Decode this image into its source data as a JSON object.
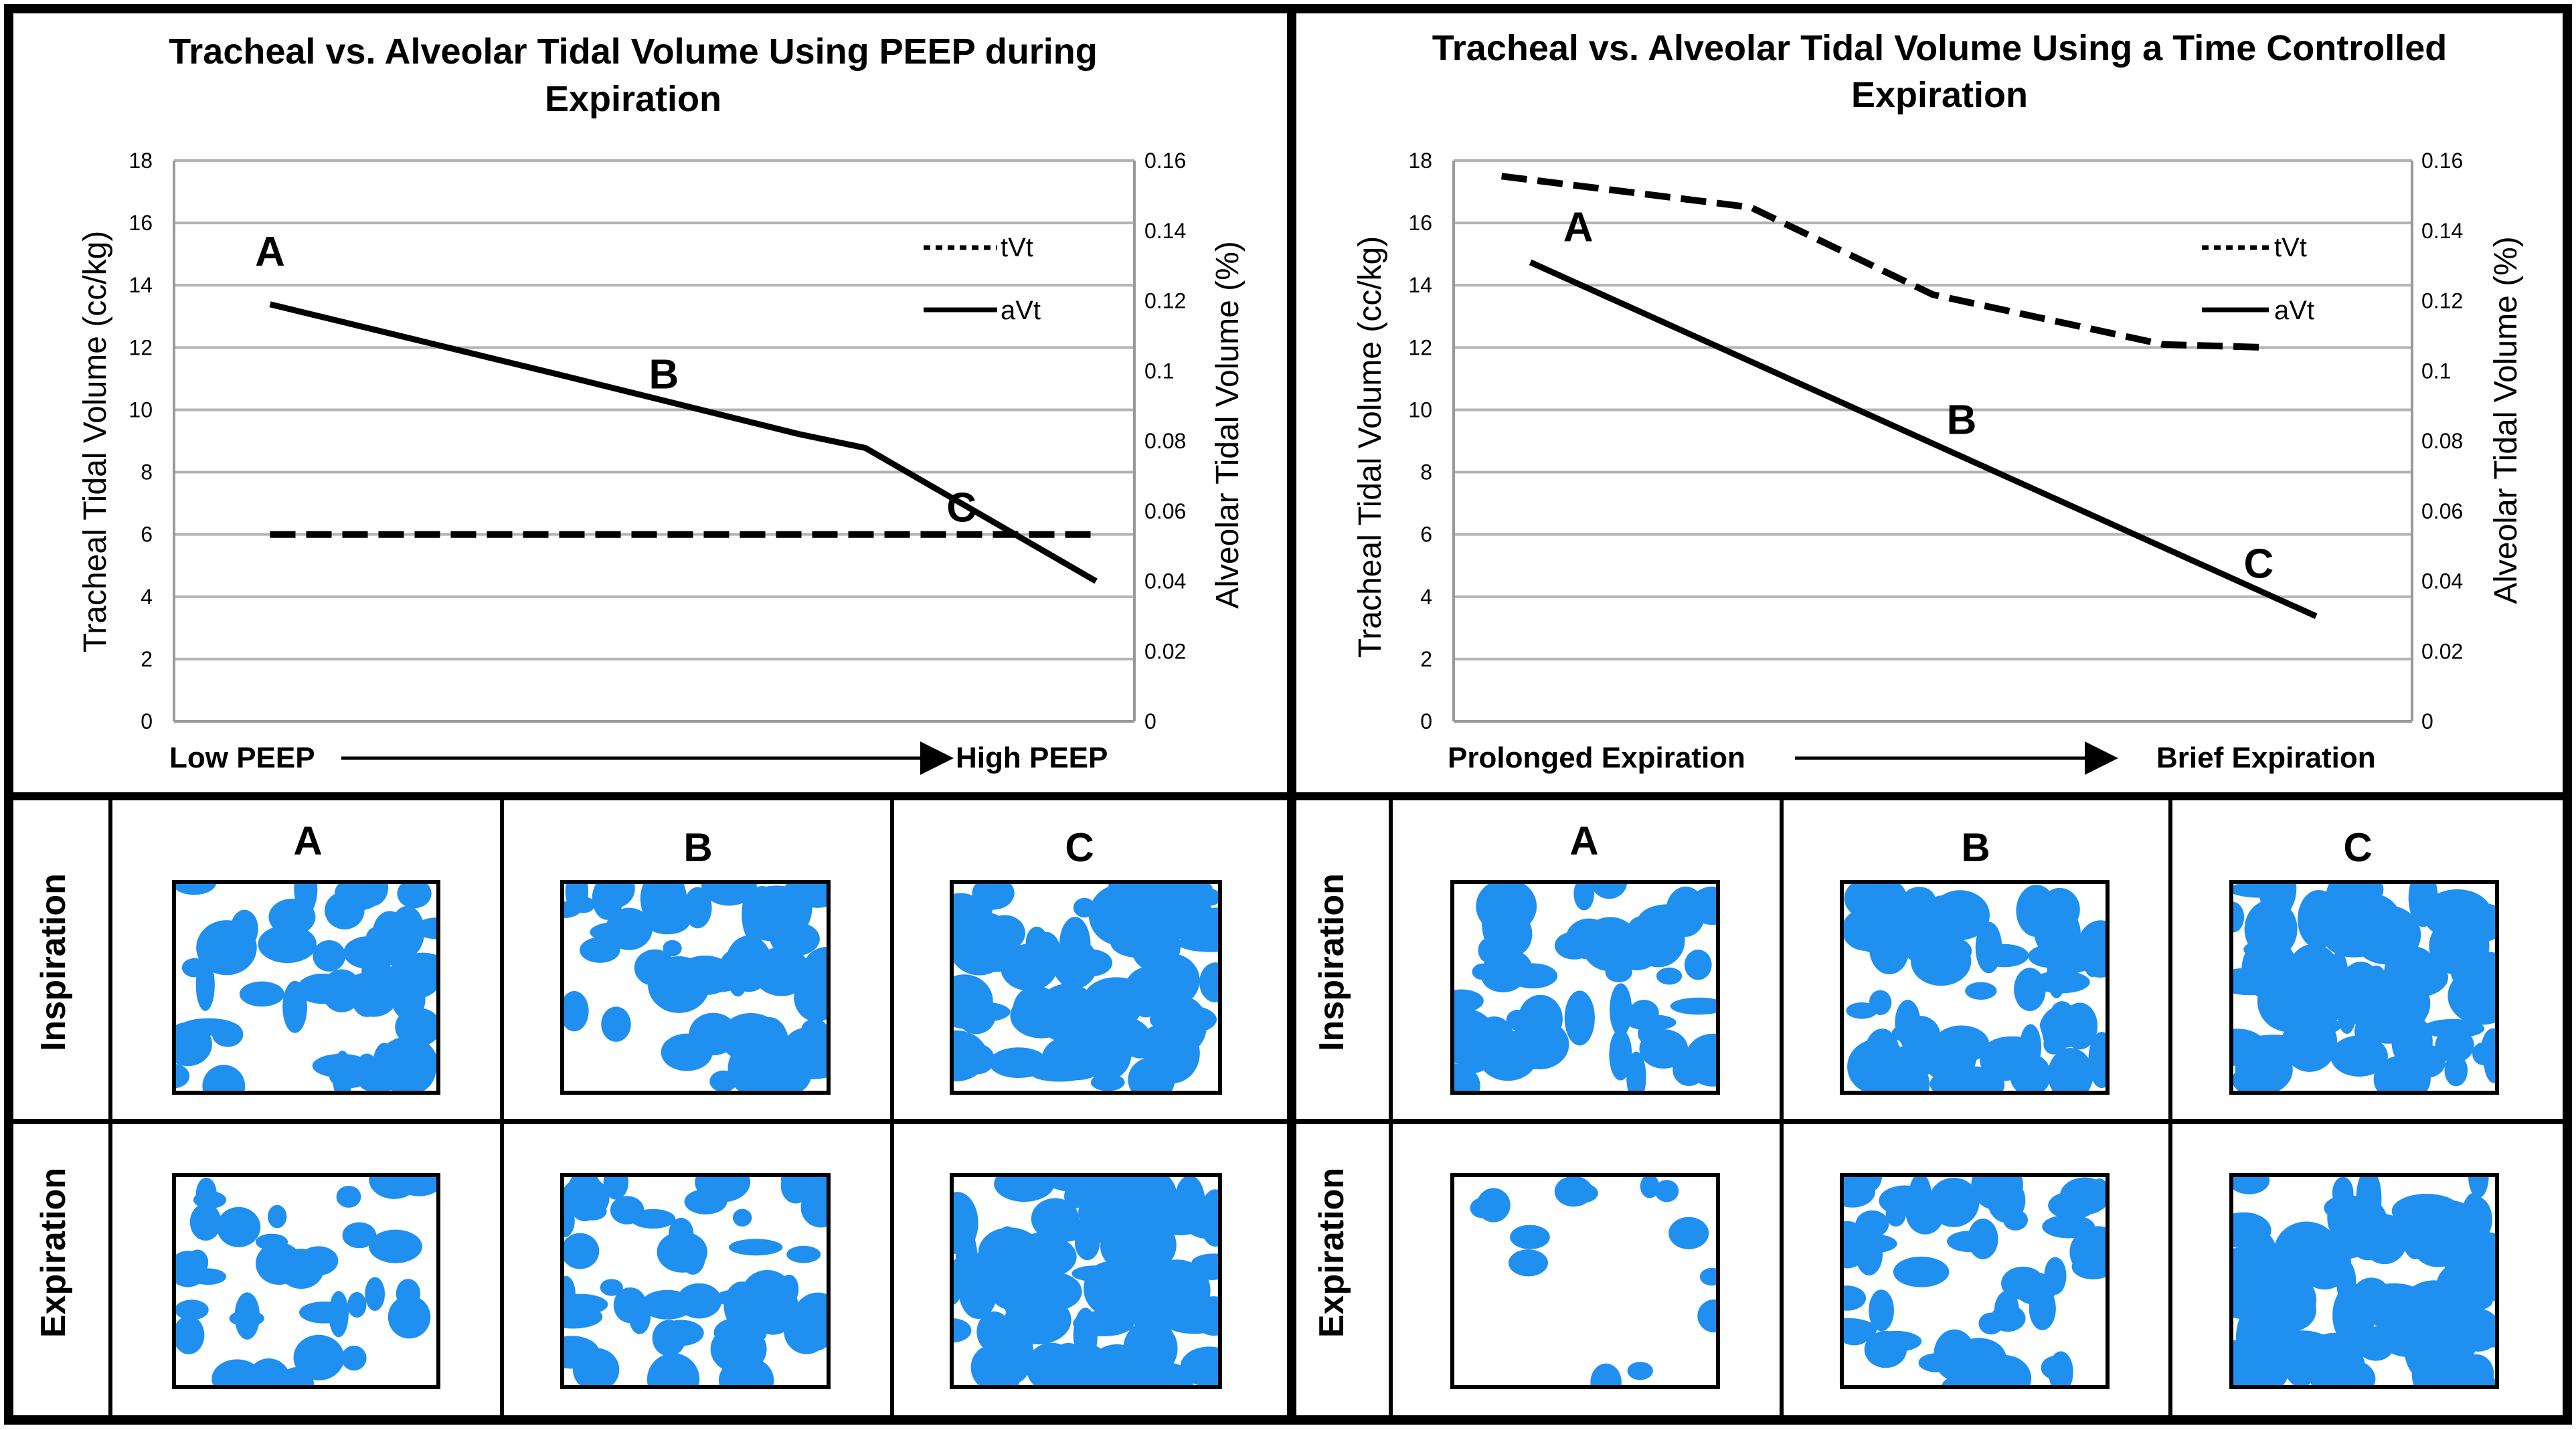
{
  "charts": [
    {
      "title_line1": "Tracheal vs. Alveolar Tidal Volume Using PEEP during",
      "title_line2": "Expiration",
      "y_left_label": "Tracheal Tidal Volume (cc/kg)",
      "y_right_label": "Alveolar Tidal Volume (%)",
      "x_start": "Low PEEP",
      "x_end": "High PEEP",
      "legend": [
        "tVt",
        "aVt"
      ]
    },
    {
      "title_line1": "Tracheal vs. Alveolar Tidal Volume Using a Time Controlled",
      "title_line2": "Expiration",
      "y_left_label": "Tracheal Tidal Volume (cc/kg)",
      "y_right_label": "Alveolar Tidal Volume (%)",
      "x_start": "Prolonged Expiration",
      "x_end": "Brief Expiration",
      "legend": [
        "tVt",
        "aVt"
      ]
    }
  ],
  "chart_data": [
    {
      "type": "line",
      "title": "Tracheal vs. Alveolar Tidal Volume Using PEEP during Expiration",
      "xlabel_start": "Low PEEP",
      "xlabel_end": "High PEEP",
      "ylabel_left": "Tracheal Tidal Volume (cc/kg)",
      "ylabel_right": "Alveolar Tidal Volume (%)",
      "ylim_left": [
        0,
        18
      ],
      "ylim_right": [
        0,
        0.16
      ],
      "yticks_left": [
        "0",
        "2",
        "4",
        "6",
        "8",
        "10",
        "12",
        "14",
        "16",
        "18"
      ],
      "yticks_right": [
        "0",
        "0.02",
        "0.04",
        "0.06",
        "0.08",
        "0.1",
        "0.12",
        "0.14",
        "0.16"
      ],
      "x_domain": [
        0,
        1
      ],
      "series": [
        {
          "name": "tVt",
          "axis": "left",
          "style": "dashed",
          "x": [
            0.1,
            0.96
          ],
          "y": [
            6,
            6
          ]
        },
        {
          "name": "aVt",
          "axis": "right",
          "style": "solid",
          "x": [
            0.1,
            0.4,
            0.65,
            0.72,
            0.96
          ],
          "y": [
            0.119,
            0.099,
            0.082,
            0.078,
            0.04
          ]
        }
      ],
      "point_labels": [
        {
          "text": "A",
          "x": 0.1,
          "y": 0.13
        },
        {
          "text": "B",
          "x": 0.51,
          "y": 0.095
        },
        {
          "text": "C",
          "x": 0.82,
          "y": 0.057
        }
      ],
      "legend": [
        "tVt",
        "aVt"
      ],
      "grid": true
    },
    {
      "type": "line",
      "title": "Tracheal vs. Alveolar Tidal Volume Using a Time Controlled Expiration",
      "xlabel_start": "Prolonged Expiration",
      "xlabel_end": "Brief Expiration",
      "ylabel_left": "Tracheal Tidal Volume (cc/kg)",
      "ylabel_right": "Alveolar Tidal Volume (%)",
      "ylim_left": [
        0,
        18
      ],
      "ylim_right": [
        0,
        0.16
      ],
      "yticks_left": [
        "0",
        "2",
        "4",
        "6",
        "8",
        "10",
        "12",
        "14",
        "16",
        "18"
      ],
      "yticks_right": [
        "0",
        "0.02",
        "0.04",
        "0.06",
        "0.08",
        "0.1",
        "0.12",
        "0.14",
        "0.16"
      ],
      "x_domain": [
        0,
        1
      ],
      "series": [
        {
          "name": "tVt",
          "axis": "left",
          "style": "dashed",
          "x": [
            0.05,
            0.31,
            0.5,
            0.74,
            0.85
          ],
          "y": [
            17.5,
            16.5,
            13.7,
            12.1,
            12
          ]
        },
        {
          "name": "aVt",
          "axis": "right",
          "style": "solid",
          "x": [
            0.08,
            0.9
          ],
          "y": [
            0.131,
            0.03
          ]
        }
      ],
      "point_labels": [
        {
          "text": "A",
          "x": 0.13,
          "y": 0.137
        },
        {
          "text": "B",
          "x": 0.53,
          "y": 0.082
        },
        {
          "text": "C",
          "x": 0.84,
          "y": 0.041
        }
      ],
      "legend": [
        "tVt",
        "aVt"
      ],
      "grid": true
    }
  ],
  "grid_labels": {
    "row_inspiration": "Inspiration",
    "row_expiration": "Expiration",
    "col_a": "A",
    "col_b": "B",
    "col_c": "C"
  },
  "colors": {
    "alveoli": "#1f8ff0",
    "lines": "#000000",
    "gridline": "#b3b3b3"
  }
}
